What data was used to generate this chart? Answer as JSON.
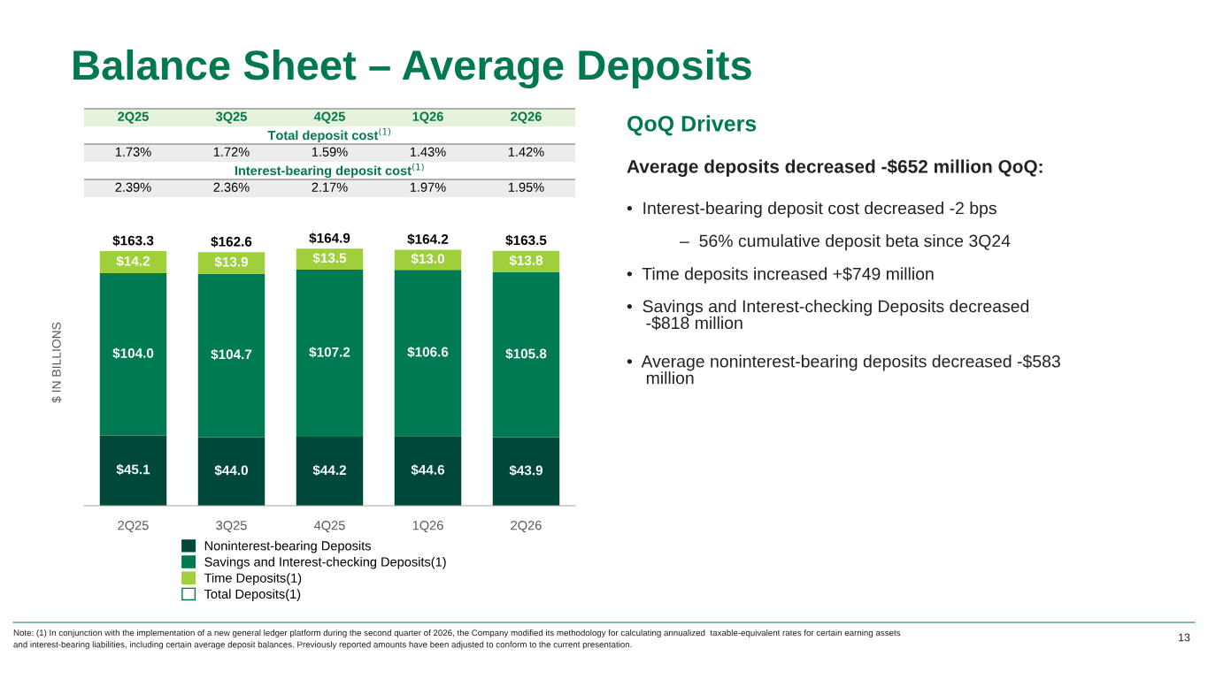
{
  "chart_data": [
    {
      "type": "other",
      "title": "Balance Sheet – Average Deposits",
      "categories": [
        "2Q25",
        "3Q25",
        "4Q25",
        "1Q26",
        "2Q26"
      ],
      "annotations": [
        "Total deposit cost$^{(1)}$",
        "1.73%",
        "1.72%",
        "1.59%",
        "1.43%",
        "1.42%",
        "Interest-bearing deposit cost$^{(1)}$",
        "2.39%",
        "2.36%",
        "2.17%",
        "1.97%",
        "1.95%"
      ]
    },
    {
      "type": "bar",
      "stacked": true,
      "categories": [
        "2Q25",
        "3Q25",
        "4Q25",
        "1Q26",
        "2Q26"
      ],
      "ylabel": "$ IN BILLIONS",
      "tick_labels": "x",
      "data_labels": true,
      "legend": "bottom",
      "grid": false,
      "series": [
        {
          "name": "Noninterest-bearing Deposits",
          "color": "#00493a",
          "values": [
            45.1,
            44.0,
            44.2,
            44.6,
            43.9
          ],
          "value_labels": [
            "$45.1",
            "$44.0",
            "$44.2",
            "$44.6",
            "$43.9"
          ]
        },
        {
          "name": "Savings and Interest-checking Deposits(1)",
          "color": "#007a53",
          "values": [
            104.0,
            104.7,
            107.2,
            106.6,
            105.8
          ],
          "value_labels": [
            "$104.0",
            "$104.7",
            "$107.2",
            "$106.6",
            "$105.8"
          ]
        },
        {
          "name": "Time Deposits(1)",
          "color": "#9fcf3a",
          "values": [
            14.2,
            13.9,
            13.5,
            13.0,
            13.8
          ],
          "value_labels": [
            "$14.2",
            "$13.9",
            "$13.5",
            "$13.0",
            "$13.8"
          ]
        }
      ],
      "totals": [
        "$163.3",
        "$162.6",
        "$164.9",
        "$164.2",
        "$163.5"
      ],
      "annotations": [
        "Total Deposits(1)",
        "Note: (1) In conjunction with the implementation of a new general ledger platform during the second quarter of 2026, the Company modified its methodology for calculating annualized  taxable-equivalent rates for certain earning assets\nand interest-bearing liabilities, including certain average deposit balances. Previously reported amounts have been adjusted to conform to the current presentation.",
        "13"
      ]
    },
    {
      "type": "other",
      "title": "QoQ Drivers",
      "subtitle": "Average deposits decreased -$652 million QoQ:",
      "annotations": [
        "•  Interest-bearing deposit cost decreased -2 bps",
        "–  56% cumulative deposit beta since 3Q24",
        "•  Time deposits increased +$749 million",
        "•  Savings and Interest-checking Deposits decreased\n    -$818 million",
        "•  Average noninterest-bearing deposits decreased -$583\n    million"
      ]
    }
  ]
}
